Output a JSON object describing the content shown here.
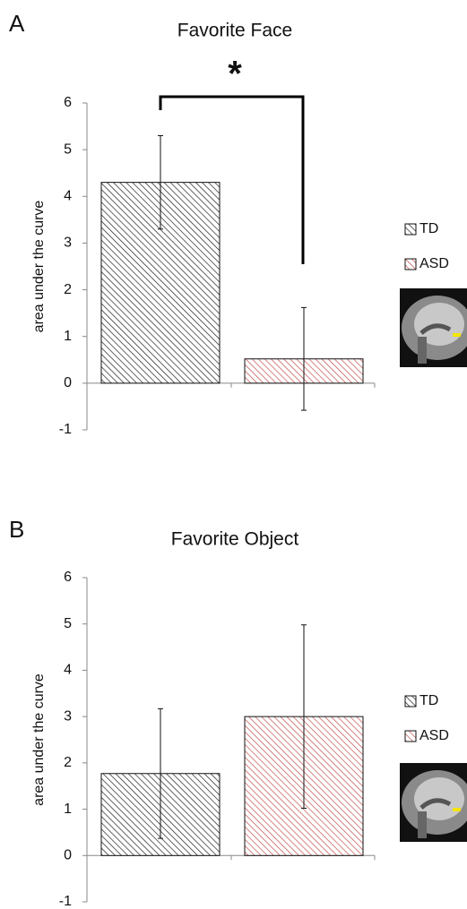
{
  "chart_data": [
    {
      "type": "bar",
      "panel_label": "A",
      "title": "Favorite Face",
      "ylabel": "area under the curve",
      "annotation": "*",
      "ylim": [
        -1,
        6
      ],
      "yticks": [
        -1,
        0,
        1,
        2,
        3,
        4,
        5,
        6
      ],
      "series": [
        {
          "name": "TD",
          "color": "#222222",
          "values": [
            4.3
          ],
          "errors": [
            1.0
          ]
        },
        {
          "name": "ASD",
          "color": "#c0504d",
          "values": [
            0.52
          ],
          "errors": [
            1.1
          ]
        }
      ]
    },
    {
      "type": "bar",
      "panel_label": "B",
      "title": "Favorite Object",
      "ylabel": "area under the curve",
      "ylim": [
        -1,
        6
      ],
      "yticks": [
        -1,
        0,
        1,
        2,
        3,
        4,
        5,
        6
      ],
      "series": [
        {
          "name": "TD",
          "color": "#222222",
          "values": [
            1.77
          ],
          "errors": [
            1.4
          ]
        },
        {
          "name": "ASD",
          "color": "#c0504d",
          "values": [
            3.0
          ],
          "errors": [
            1.98
          ]
        }
      ]
    }
  ]
}
